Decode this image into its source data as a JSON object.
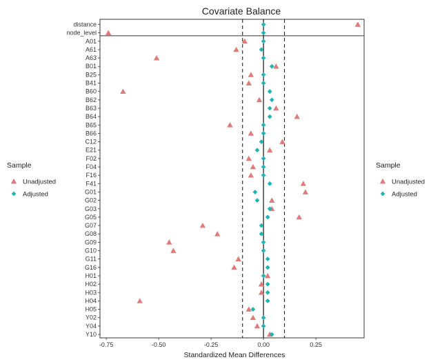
{
  "chart_data": {
    "type": "scatter",
    "title": "Covariate Balance",
    "xlabel": "Standardized Mean Differences",
    "ylabel": "",
    "xlim": [
      -0.78,
      0.48
    ],
    "xticks": [
      -0.75,
      -0.5,
      -0.25,
      0.0,
      0.25
    ],
    "xtick_labels": [
      "-0.75",
      "-0.50",
      "-0.25",
      "0.00",
      "0.25"
    ],
    "threshold_lines": [
      -0.1,
      0.1
    ],
    "zero_line": 0,
    "separator_after": "node_level",
    "legend": {
      "title": "Sample",
      "placement": "left and right",
      "entries": [
        {
          "name": "Unadjusted",
          "shape": "triangle",
          "color": "#e07b7b"
        },
        {
          "name": "Adjusted",
          "shape": "diamond",
          "color": "#1fb3b3"
        }
      ]
    },
    "categories": [
      "distance",
      "node_level",
      "A01",
      "A61",
      "A63",
      "B01",
      "B25",
      "B41",
      "B60",
      "B62",
      "B63",
      "B64",
      "B65",
      "B66",
      "C12",
      "E21",
      "F02",
      "F04",
      "F16",
      "F41",
      "G01",
      "G02",
      "G03",
      "G05",
      "G07",
      "G08",
      "G09",
      "G10",
      "G11",
      "G16",
      "H01",
      "H02",
      "H03",
      "H04",
      "H05",
      "Y02",
      "Y04",
      "Y10"
    ],
    "series": [
      {
        "name": "Unadjusted",
        "color": "#e07b7b",
        "marker": "triangle",
        "values": [
          0.45,
          -0.74,
          -0.09,
          -0.13,
          -0.51,
          0.06,
          -0.06,
          -0.07,
          -0.67,
          -0.02,
          0.06,
          0.16,
          -0.16,
          -0.06,
          0.09,
          0.03,
          -0.07,
          -0.05,
          -0.06,
          0.19,
          0.2,
          0.04,
          0.04,
          0.17,
          -0.29,
          -0.22,
          -0.45,
          -0.43,
          -0.12,
          -0.14,
          0.02,
          -0.01,
          -0.01,
          -0.59,
          -0.07,
          -0.05,
          -0.03,
          0.03
        ]
      },
      {
        "name": "Adjusted",
        "color": "#1fb3b3",
        "marker": "diamond",
        "values": [
          0.0,
          0.0,
          0.0,
          -0.01,
          0.0,
          0.04,
          0.0,
          0.0,
          0.03,
          0.04,
          0.03,
          0.03,
          0.0,
          0.0,
          -0.01,
          -0.03,
          0.0,
          0.0,
          0.0,
          0.03,
          -0.04,
          -0.03,
          0.03,
          0.02,
          -0.01,
          -0.01,
          0.0,
          0.0,
          0.02,
          0.02,
          0.0,
          0.02,
          0.02,
          0.02,
          -0.05,
          0.0,
          0.0,
          0.04
        ]
      }
    ]
  }
}
